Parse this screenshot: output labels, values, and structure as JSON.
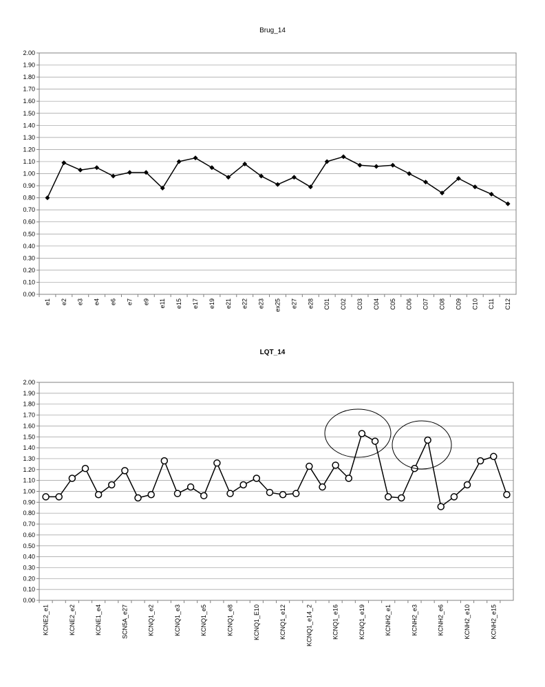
{
  "chart_data": [
    {
      "type": "line",
      "title": "Brug_14",
      "marker": "diamond",
      "color": "#000000",
      "grid": true,
      "categories": [
        "e1",
        "e2",
        "e3",
        "e4",
        "e6",
        "e7",
        "e9",
        "e11",
        "e15",
        "e17",
        "e19",
        "e21",
        "e22",
        "e23",
        "ex25",
        "e27",
        "e28",
        "C01",
        "C02",
        "C03",
        "C04",
        "C05",
        "C06",
        "C07",
        "C08",
        "C09",
        "C10",
        "C11",
        "C12"
      ],
      "values": [
        0.8,
        1.09,
        1.03,
        1.05,
        0.98,
        1.01,
        1.01,
        0.88,
        1.1,
        1.13,
        1.05,
        0.97,
        1.08,
        0.98,
        0.91,
        0.97,
        0.89,
        1.1,
        1.14,
        1.07,
        1.06,
        1.07,
        1.0,
        0.93,
        0.84,
        0.96,
        0.89,
        0.83,
        0.75
      ],
      "ylim": [
        0,
        2
      ],
      "yticks": [
        {
          "value": 0,
          "label": "0.00"
        },
        {
          "value": 0.1,
          "label": "0.10"
        },
        {
          "value": 0.2,
          "label": "0.20"
        },
        {
          "value": 0.3,
          "label": "0.30"
        },
        {
          "value": 0.4,
          "label": "0.40"
        },
        {
          "value": 0.5,
          "label": "0.50"
        },
        {
          "value": 0.6,
          "label": "0.60"
        },
        {
          "value": 0.7,
          "label": "0.70"
        },
        {
          "value": 0.8,
          "label": "0.80"
        },
        {
          "value": 0.9,
          "label": "0.90"
        },
        {
          "value": 1,
          "label": "1.00"
        },
        {
          "value": 1.1,
          "label": "1.10"
        },
        {
          "value": 1.2,
          "label": "1.20"
        },
        {
          "value": 1.3,
          "label": "1.30"
        },
        {
          "value": 1.4,
          "label": "1.40"
        },
        {
          "value": 1.5,
          "label": "1.50"
        },
        {
          "value": 1.6,
          "label": "1.60"
        },
        {
          "value": 1.7,
          "label": "1.70"
        },
        {
          "value": 1.8,
          "label": "1.80"
        },
        {
          "value": 1.9,
          "label": "1.90"
        },
        {
          "value": 2,
          "label": "2.00"
        }
      ]
    },
    {
      "type": "line",
      "title": "LQT_14",
      "marker": "circle",
      "color": "#000000",
      "grid": true,
      "categories": [
        "KCNE2_e1",
        null,
        "KCNE2_e2",
        null,
        "KCNE1_e4",
        null,
        "SCN5A_e27",
        null,
        "KCNQ1_e2",
        null,
        "KCNQ1_e3",
        null,
        "KCNQ1_e5",
        null,
        "KCNQ1_e8",
        null,
        "KCNQ1_E10",
        null,
        "KCNQ1_e12",
        null,
        "KCNQ1_e14_2",
        null,
        "KCNQ1_e16",
        null,
        "KCNQ1_e19",
        null,
        "KCNH2_e1",
        null,
        "KCNH2_e3",
        null,
        "KCNH2_e6",
        null,
        "KCNH2_e10",
        null,
        "KCNH2_e15",
        null
      ],
      "values": [
        0.95,
        0.95,
        1.12,
        1.21,
        0.97,
        1.06,
        1.19,
        0.94,
        0.97,
        1.28,
        0.98,
        1.04,
        0.96,
        1.26,
        0.98,
        1.06,
        1.12,
        0.99,
        0.97,
        0.98,
        1.23,
        1.04,
        1.24,
        1.12,
        1.53,
        1.46,
        0.95,
        0.94,
        1.21,
        1.47,
        0.86,
        0.95,
        1.06,
        1.28,
        1.32,
        0.97
      ],
      "ylim": [
        0,
        2
      ],
      "yticks": [
        {
          "value": 0,
          "label": "0.00"
        },
        {
          "value": 0.1,
          "label": "0.10"
        },
        {
          "value": 0.2,
          "label": "0.20"
        },
        {
          "value": 0.3,
          "label": "0.30"
        },
        {
          "value": 0.4,
          "label": "0.40"
        },
        {
          "value": 0.5,
          "label": "0.50"
        },
        {
          "value": 0.6,
          "label": "0.60"
        },
        {
          "value": 0.7,
          "label": "0.70"
        },
        {
          "value": 0.8,
          "label": "0.80"
        },
        {
          "value": 0.9,
          "label": "0.90"
        },
        {
          "value": 1,
          "label": "1.00"
        },
        {
          "value": 1.1,
          "label": "1.10"
        },
        {
          "value": 1.2,
          "label": "1.20"
        },
        {
          "value": 1.3,
          "label": "1.30"
        },
        {
          "value": 1.4,
          "label": "1.40"
        },
        {
          "value": 1.5,
          "label": "1.50"
        },
        {
          "value": 1.6,
          "label": "1.60"
        },
        {
          "value": 1.7,
          "label": "1.70"
        },
        {
          "value": 1.8,
          "label": "1.80"
        },
        {
          "value": 1.9,
          "label": "1.90"
        },
        {
          "value": 2,
          "label": "2.00"
        }
      ]
    }
  ]
}
